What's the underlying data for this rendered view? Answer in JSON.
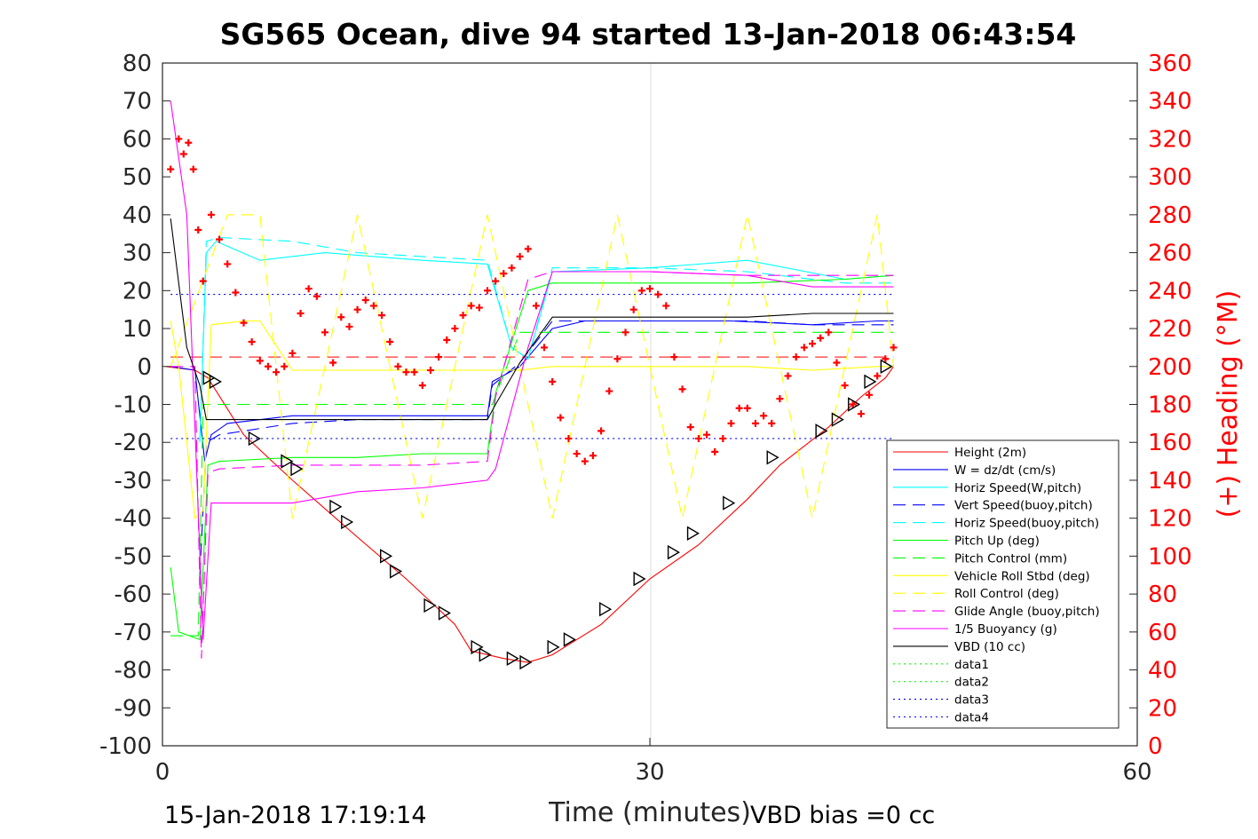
{
  "chart_data": {
    "type": "line",
    "title": "SG565 Ocean, dive 94 started 13-Jan-2018 06:43:54",
    "xlabel": "Time (minutes)",
    "ylabel": "",
    "y2label": "(+) Heading (°M)",
    "xlim": [
      0,
      60
    ],
    "ylim": [
      -100,
      80
    ],
    "y2lim": [
      0,
      360
    ],
    "xticks": [
      "0",
      "30",
      "60"
    ],
    "yticks": [
      "80",
      "70",
      "60",
      "50",
      "40",
      "30",
      "20",
      "10",
      "0",
      "-10",
      "-20",
      "-30",
      "-40",
      "-50",
      "-60",
      "-70",
      "-80",
      "-90",
      "-100"
    ],
    "y2ticks": [
      "360",
      "340",
      "320",
      "300",
      "280",
      "260",
      "240",
      "220",
      "200",
      "180",
      "160",
      "140",
      "120",
      "100",
      "80",
      "60",
      "40",
      "20",
      "0"
    ],
    "grid": "x at 30",
    "legend_position": "bottom-right",
    "footer_left": "15-Jan-2018 17:19:14",
    "footer_right": "VBD bias =0 cc",
    "series": [
      {
        "name": "Height (2m)",
        "color": "#ff0000",
        "style": "solid",
        "x": [
          0.2,
          2,
          2.8,
          5,
          8,
          12,
          15,
          18,
          19,
          21,
          22.5,
          24,
          27,
          30,
          33,
          36,
          38,
          41,
          43,
          44.5,
          45
        ],
        "y": [
          0,
          -1,
          -3,
          -18,
          -30,
          -45,
          -56,
          -68,
          -75,
          -77,
          -78,
          -76,
          -68,
          -56,
          -47,
          -35,
          -26,
          -16,
          -8,
          -3,
          0
        ]
      },
      {
        "name": "W = dz/dt (cm/s)",
        "color": "#0000ff",
        "style": "solid",
        "x": [
          0.5,
          2,
          2.6,
          3,
          4,
          8,
          12,
          16,
          20,
          20.3,
          22,
          24,
          26,
          30,
          35,
          40,
          44,
          45
        ],
        "y": [
          0,
          -1,
          -25,
          -18,
          -15,
          -13,
          -13,
          -13,
          -13,
          -4,
          0,
          10,
          12,
          12,
          12,
          11,
          12,
          12
        ]
      },
      {
        "name": "Horiz Speed(W,pitch)",
        "color": "#00ffff",
        "style": "solid",
        "x": [
          2.3,
          2.7,
          3.3,
          6,
          10,
          16,
          20,
          21.5,
          22.5,
          24,
          30,
          36,
          42,
          45
        ],
        "y": [
          -20,
          30,
          33,
          28,
          30,
          28,
          27,
          5,
          2,
          25,
          26,
          28,
          23,
          24
        ]
      },
      {
        "name": "Vert Speed(buoy,pitch)",
        "color": "#0000ff",
        "style": "dashed",
        "x": [
          2.3,
          2.7,
          3.5,
          8,
          12,
          16,
          20,
          20.3,
          22,
          24,
          30,
          36,
          40,
          45
        ],
        "y": [
          -55,
          -20,
          -18,
          -15,
          -14,
          -14,
          -14,
          -5,
          1,
          12,
          12,
          12,
          11,
          11
        ]
      },
      {
        "name": "Horiz Speed(buoy,pitch)",
        "color": "#00ffff",
        "style": "dashed",
        "x": [
          2.3,
          2.7,
          3.5,
          8,
          12,
          16,
          20,
          21.5,
          22.5,
          24,
          30,
          36,
          42,
          45
        ],
        "y": [
          -20,
          33,
          34,
          33,
          30,
          29,
          28,
          5,
          2,
          26,
          26,
          25,
          22,
          22
        ]
      },
      {
        "name": "Pitch Up (deg)",
        "color": "#00ff00",
        "style": "solid",
        "x": [
          0.5,
          1,
          2.3,
          2.8,
          3.5,
          8,
          12,
          16,
          20,
          20.5,
          22.5,
          24,
          30,
          36,
          42,
          45
        ],
        "y": [
          -53,
          -70,
          -72,
          -26,
          -25,
          -24,
          -24,
          -23,
          -23,
          -7,
          20,
          22,
          22,
          22,
          23,
          24
        ]
      },
      {
        "name": "Pitch Control (mm)",
        "color": "#00ff00",
        "style": "dashed",
        "x": [
          0.5,
          2.2,
          2.5,
          20,
          20.3,
          22,
          24,
          45
        ],
        "y": [
          -71,
          -71,
          -10,
          -10,
          -10,
          9,
          9,
          9
        ]
      },
      {
        "name": "Vehicle Roll Stbd (deg)",
        "color": "#ffff00",
        "style": "solid",
        "x": [
          0.5,
          1,
          2,
          2.5,
          3,
          5,
          6,
          8,
          12,
          18,
          20,
          22,
          24,
          30,
          36,
          40,
          44,
          45
        ],
        "y": [
          12,
          0,
          -40,
          -38,
          11,
          12,
          12,
          -1,
          -1,
          -1,
          -1,
          -1,
          0,
          0,
          0,
          -1,
          0,
          0
        ]
      },
      {
        "name": "Roll Control (deg)",
        "color": "#ffff00",
        "style": "dashed",
        "x": [
          0.5,
          4,
          6,
          8,
          12,
          16,
          20,
          24,
          28,
          32,
          36,
          40,
          44,
          45
        ],
        "y": [
          0,
          40,
          40,
          -40,
          40,
          -40,
          40,
          -40,
          40,
          -40,
          40,
          -40,
          40,
          0
        ]
      },
      {
        "name": "Glide Angle (buoy,pitch)",
        "color": "#ff00ff",
        "style": "dashed",
        "x": [
          0.5,
          2,
          2.4,
          2.8,
          3.5,
          8,
          12,
          16,
          20,
          20.5,
          22.5,
          24,
          30,
          36,
          42,
          45
        ],
        "y": [
          0,
          0,
          -77,
          -28,
          -27,
          -26,
          -26,
          -26,
          -25,
          -8,
          23,
          25,
          25,
          24,
          24,
          24
        ]
      },
      {
        "name": "1/5 Buoyancy (g)",
        "color": "#ff00ff",
        "style": "solid",
        "x": [
          0.5,
          1.5,
          2.5,
          3,
          8,
          12,
          16,
          20,
          20.5,
          22.5,
          24,
          30,
          36,
          40,
          45
        ],
        "y": [
          70,
          40,
          -72,
          -36,
          -36,
          -33,
          -32,
          -30,
          -27,
          5,
          25,
          25,
          24,
          21,
          21
        ]
      },
      {
        "name": "VBD (10 cc)",
        "color": "#000000",
        "style": "solid",
        "x": [
          0.5,
          1.5,
          2.3,
          2.7,
          8,
          12,
          16,
          20,
          20.5,
          22,
          24,
          30,
          36,
          40,
          45
        ],
        "y": [
          39,
          5,
          -5,
          -14,
          -14,
          -14,
          -14,
          -14,
          -10,
          1,
          13,
          13,
          13,
          14,
          14
        ]
      },
      {
        "name": "data1",
        "color": "#00ff00",
        "style": "dotted",
        "x": [],
        "y": []
      },
      {
        "name": "data2",
        "color": "#00ff00",
        "style": "dotted",
        "x": [],
        "y": []
      },
      {
        "name": "data3",
        "color": "#0000ff",
        "style": "dotted",
        "x": [
          0.5,
          45
        ],
        "y": [
          19,
          19
        ]
      },
      {
        "name": "data4",
        "color": "#0000ff",
        "style": "dotted",
        "x": [
          0.5,
          45
        ],
        "y": [
          -19,
          -19
        ]
      }
    ],
    "reference_line": {
      "color": "#ff0000",
      "style": "dashed",
      "y": 2.5,
      "x": [
        0.5,
        45
      ]
    },
    "heading": {
      "color": "#ff0000",
      "marker": "plus",
      "x": [
        0.5,
        1,
        1.3,
        1.6,
        1.9,
        2.2,
        2.5,
        3,
        3.5,
        4,
        4.5,
        5,
        5.5,
        6,
        6.5,
        7,
        7.5,
        8,
        8.5,
        9,
        9.5,
        10,
        10.5,
        11,
        11.5,
        12,
        12.5,
        13,
        13.5,
        14,
        14.5,
        15,
        15.5,
        16,
        16.5,
        17,
        17.5,
        18,
        18.5,
        19,
        19.5,
        20,
        20.5,
        21,
        21.5,
        22,
        22.5,
        23,
        23.5,
        24,
        24.5,
        25,
        25.5,
        26,
        26.5,
        27,
        27.5,
        28,
        28.5,
        29,
        29.5,
        30,
        30.5,
        31,
        31.5,
        32,
        32.5,
        33,
        33.5,
        34,
        34.5,
        35,
        35.5,
        36,
        36.5,
        37,
        37.5,
        38,
        38.5,
        39,
        39.5,
        40,
        40.5,
        41,
        41.5,
        42,
        42.5,
        43,
        43.5,
        44,
        44.5,
        45
      ],
      "y": [
        304,
        320,
        312,
        318,
        304,
        272,
        245,
        280,
        267,
        254,
        239,
        223,
        213,
        203,
        200,
        197,
        200,
        207,
        228,
        241,
        237,
        218,
        202,
        226,
        221,
        230,
        235,
        232,
        227,
        213,
        200,
        197,
        197,
        190,
        198,
        205,
        214,
        220,
        227,
        232,
        231,
        240,
        245,
        249,
        252,
        258,
        262,
        232,
        210,
        192,
        173,
        162,
        154,
        150,
        153,
        166,
        187,
        204,
        218,
        230,
        240,
        241,
        238,
        232,
        205,
        188,
        168,
        162,
        164,
        155,
        162,
        170,
        178,
        178,
        170,
        174,
        170,
        183,
        195,
        205,
        210,
        212,
        215,
        218,
        202,
        190,
        180,
        175,
        185,
        195,
        204,
        210
      ]
    },
    "markers": {
      "shape": "triangle-right",
      "color": "#000000",
      "x": [
        2.8,
        3.2,
        5.6,
        7.6,
        8.2,
        10.6,
        11.3,
        13.7,
        14.3,
        16.4,
        17.3,
        19.3,
        19.8,
        21.5,
        22.3,
        24,
        25,
        27.2,
        29.3,
        31.4,
        32.6,
        34.8,
        37.5,
        40.5,
        41.5,
        42.5,
        43.5,
        44.5
      ],
      "y": [
        -3,
        -4,
        -19,
        -25,
        -27,
        -37,
        -41,
        -50,
        -54,
        -63,
        -65,
        -74,
        -76,
        -77,
        -78,
        -74,
        -72,
        -64,
        -56,
        -49,
        -44,
        -36,
        -24,
        -17,
        -14,
        -10,
        -4,
        0
      ]
    }
  }
}
